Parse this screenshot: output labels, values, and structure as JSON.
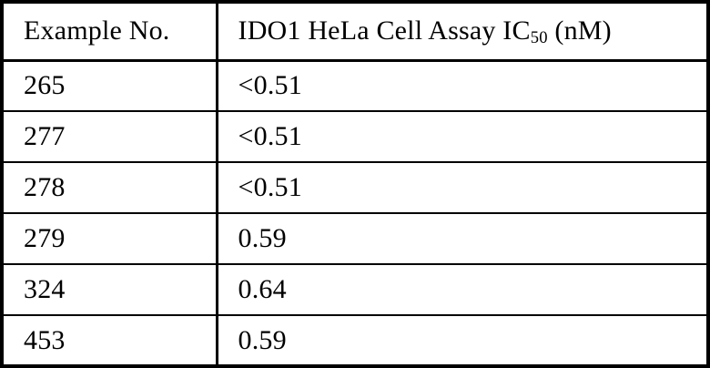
{
  "table": {
    "header": {
      "col1": "Example No.",
      "col2_prefix": "IDO1 HeLa Cell Assay IC",
      "col2_sub": "50",
      "col2_suffix": " (nM)"
    },
    "rows": [
      [
        "265",
        "<0.51"
      ],
      [
        "277",
        "<0.51"
      ],
      [
        "278",
        "<0.51"
      ],
      [
        "279",
        "0.59"
      ],
      [
        "324",
        "0.64"
      ],
      [
        "453",
        "0.59"
      ]
    ],
    "colors": {
      "border": "#000000",
      "background": "#ffffff",
      "text": "#000000"
    }
  }
}
